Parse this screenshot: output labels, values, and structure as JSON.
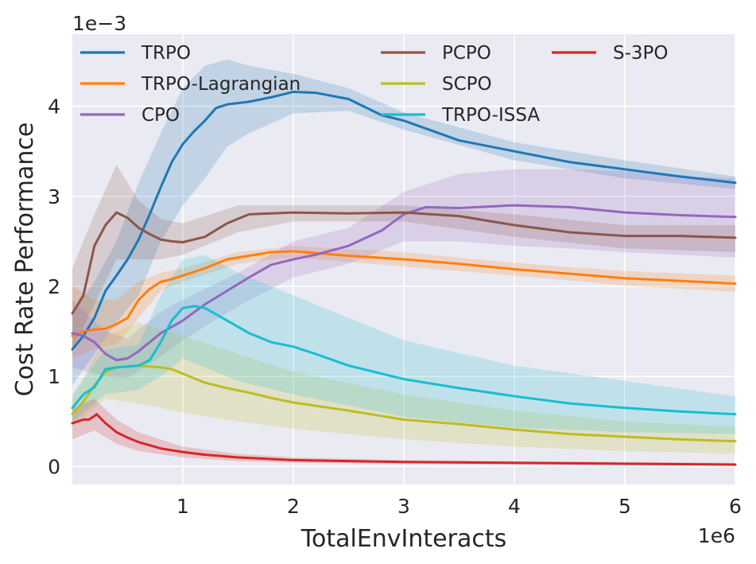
{
  "chart_data": {
    "type": "line",
    "xlabel": "TotalEnvInteracts",
    "ylabel": "Cost Rate Performance",
    "x_offset_label": "1e6",
    "y_offset_label": "1e−3",
    "x_unit_scale": 1000000,
    "y_unit_scale": 0.001,
    "xlim": [
      0.0,
      6.0
    ],
    "ylim": [
      -0.2,
      4.8
    ],
    "xticks": [
      1,
      2,
      3,
      4,
      5,
      6
    ],
    "xtick_labels": [
      "1",
      "2",
      "3",
      "4",
      "5",
      "6"
    ],
    "yticks": [
      0,
      1,
      2,
      3,
      4
    ],
    "ytick_labels": [
      "0",
      "1",
      "2",
      "3",
      "4"
    ],
    "grid": true,
    "legend_location": "top",
    "series": [
      {
        "name": "TRPO",
        "color": "#1f77b4",
        "points": [
          [
            0,
            1.3
          ],
          [
            0.1,
            1.45
          ],
          [
            0.2,
            1.65
          ],
          [
            0.3,
            1.95
          ],
          [
            0.4,
            2.12
          ],
          [
            0.5,
            2.3
          ],
          [
            0.6,
            2.52
          ],
          [
            0.7,
            2.8
          ],
          [
            0.8,
            3.1
          ],
          [
            0.9,
            3.38
          ],
          [
            1.0,
            3.58
          ],
          [
            1.1,
            3.72
          ],
          [
            1.2,
            3.84
          ],
          [
            1.3,
            3.98
          ],
          [
            1.4,
            4.02
          ],
          [
            1.6,
            4.05
          ],
          [
            1.8,
            4.1
          ],
          [
            2.0,
            4.16
          ],
          [
            2.2,
            4.15
          ],
          [
            2.5,
            4.08
          ],
          [
            2.8,
            3.9
          ],
          [
            3.0,
            3.84
          ],
          [
            3.5,
            3.62
          ],
          [
            4.0,
            3.5
          ],
          [
            4.5,
            3.38
          ],
          [
            5.0,
            3.3
          ],
          [
            5.5,
            3.22
          ],
          [
            6.0,
            3.15
          ]
        ],
        "band": [
          [
            0,
            0.9,
            1.7
          ],
          [
            0.2,
            1.25,
            2.05
          ],
          [
            0.4,
            1.6,
            2.5
          ],
          [
            0.6,
            1.9,
            3.15
          ],
          [
            0.8,
            2.5,
            3.7
          ],
          [
            1.0,
            2.9,
            4.2
          ],
          [
            1.2,
            3.2,
            4.45
          ],
          [
            1.4,
            3.55,
            4.52
          ],
          [
            1.6,
            3.7,
            4.45
          ],
          [
            2.0,
            3.92,
            4.36
          ],
          [
            2.5,
            3.95,
            4.2
          ],
          [
            3.0,
            3.74,
            3.93
          ],
          [
            4.0,
            3.4,
            3.6
          ],
          [
            5.0,
            3.2,
            3.4
          ],
          [
            6.0,
            3.08,
            3.22
          ]
        ]
      },
      {
        "name": "TRPO-Lagrangian",
        "color": "#ff7f0e",
        "points": [
          [
            0,
            1.45
          ],
          [
            0.1,
            1.5
          ],
          [
            0.2,
            1.52
          ],
          [
            0.3,
            1.53
          ],
          [
            0.4,
            1.58
          ],
          [
            0.5,
            1.65
          ],
          [
            0.6,
            1.85
          ],
          [
            0.7,
            1.97
          ],
          [
            0.8,
            2.05
          ],
          [
            0.9,
            2.08
          ],
          [
            1.0,
            2.12
          ],
          [
            1.2,
            2.2
          ],
          [
            1.4,
            2.3
          ],
          [
            1.6,
            2.34
          ],
          [
            1.8,
            2.38
          ],
          [
            2.0,
            2.39
          ],
          [
            2.2,
            2.37
          ],
          [
            2.5,
            2.34
          ],
          [
            3.0,
            2.3
          ],
          [
            3.5,
            2.25
          ],
          [
            4.0,
            2.19
          ],
          [
            4.5,
            2.14
          ],
          [
            5.0,
            2.09
          ],
          [
            5.5,
            2.06
          ],
          [
            6.0,
            2.03
          ]
        ],
        "band": [
          [
            0,
            1.2,
            2.0
          ],
          [
            0.2,
            1.3,
            1.85
          ],
          [
            0.4,
            1.35,
            1.85
          ],
          [
            0.6,
            1.65,
            2.05
          ],
          [
            0.8,
            1.95,
            2.15
          ],
          [
            1.0,
            2.05,
            2.2
          ],
          [
            1.5,
            2.25,
            2.38
          ],
          [
            2.0,
            2.32,
            2.45
          ],
          [
            3.0,
            2.22,
            2.38
          ],
          [
            4.0,
            2.12,
            2.26
          ],
          [
            5.0,
            2.01,
            2.17
          ],
          [
            6.0,
            1.94,
            2.12
          ]
        ]
      },
      {
        "name": "CPO",
        "color": "#9467bd",
        "points": [
          [
            0,
            1.48
          ],
          [
            0.1,
            1.45
          ],
          [
            0.2,
            1.38
          ],
          [
            0.3,
            1.25
          ],
          [
            0.4,
            1.18
          ],
          [
            0.5,
            1.2
          ],
          [
            0.6,
            1.28
          ],
          [
            0.7,
            1.38
          ],
          [
            0.8,
            1.48
          ],
          [
            0.9,
            1.55
          ],
          [
            1.0,
            1.62
          ],
          [
            1.2,
            1.8
          ],
          [
            1.4,
            1.95
          ],
          [
            1.6,
            2.1
          ],
          [
            1.8,
            2.24
          ],
          [
            2.0,
            2.3
          ],
          [
            2.2,
            2.35
          ],
          [
            2.5,
            2.45
          ],
          [
            2.8,
            2.62
          ],
          [
            3.0,
            2.8
          ],
          [
            3.2,
            2.88
          ],
          [
            3.5,
            2.87
          ],
          [
            4.0,
            2.9
          ],
          [
            4.5,
            2.88
          ],
          [
            5.0,
            2.82
          ],
          [
            5.5,
            2.79
          ],
          [
            6.0,
            2.77
          ]
        ],
        "band": [
          [
            0,
            1.1,
            1.85
          ],
          [
            0.3,
            1.0,
            1.5
          ],
          [
            0.5,
            0.98,
            1.42
          ],
          [
            0.8,
            1.22,
            1.72
          ],
          [
            1.0,
            1.4,
            1.85
          ],
          [
            1.5,
            1.78,
            2.15
          ],
          [
            2.0,
            2.1,
            2.5
          ],
          [
            2.5,
            2.25,
            2.65
          ],
          [
            3.0,
            2.5,
            3.05
          ],
          [
            3.5,
            2.5,
            3.25
          ],
          [
            4.0,
            2.45,
            3.3
          ],
          [
            4.5,
            2.42,
            3.3
          ],
          [
            5.0,
            2.38,
            3.28
          ],
          [
            5.5,
            2.35,
            3.22
          ],
          [
            6.0,
            2.32,
            3.2
          ]
        ]
      },
      {
        "name": "PCPO",
        "color": "#8c564b",
        "points": [
          [
            0,
            1.7
          ],
          [
            0.1,
            1.9
          ],
          [
            0.2,
            2.45
          ],
          [
            0.3,
            2.68
          ],
          [
            0.4,
            2.82
          ],
          [
            0.5,
            2.76
          ],
          [
            0.6,
            2.65
          ],
          [
            0.7,
            2.58
          ],
          [
            0.8,
            2.52
          ],
          [
            0.9,
            2.5
          ],
          [
            1.0,
            2.49
          ],
          [
            1.2,
            2.55
          ],
          [
            1.4,
            2.7
          ],
          [
            1.6,
            2.8
          ],
          [
            1.8,
            2.81
          ],
          [
            2.0,
            2.82
          ],
          [
            2.5,
            2.81
          ],
          [
            3.0,
            2.82
          ],
          [
            3.5,
            2.78
          ],
          [
            4.0,
            2.68
          ],
          [
            4.5,
            2.6
          ],
          [
            5.0,
            2.56
          ],
          [
            5.5,
            2.56
          ],
          [
            6.0,
            2.54
          ]
        ],
        "band": [
          [
            0,
            1.3,
            2.2
          ],
          [
            0.2,
            1.8,
            2.8
          ],
          [
            0.4,
            2.3,
            3.35
          ],
          [
            0.6,
            2.3,
            2.95
          ],
          [
            0.8,
            2.3,
            2.75
          ],
          [
            1.0,
            2.35,
            2.7
          ],
          [
            1.5,
            2.6,
            2.9
          ],
          [
            2.0,
            2.72,
            2.9
          ],
          [
            3.0,
            2.72,
            2.9
          ],
          [
            4.0,
            2.55,
            2.8
          ],
          [
            5.0,
            2.42,
            2.68
          ],
          [
            6.0,
            2.38,
            2.68
          ]
        ]
      },
      {
        "name": "SCPO",
        "color": "#bcbd22",
        "points": [
          [
            0,
            0.58
          ],
          [
            0.1,
            0.72
          ],
          [
            0.2,
            0.9
          ],
          [
            0.3,
            1.05
          ],
          [
            0.4,
            1.1
          ],
          [
            0.5,
            1.11
          ],
          [
            0.6,
            1.12
          ],
          [
            0.7,
            1.11
          ],
          [
            0.8,
            1.1
          ],
          [
            0.9,
            1.08
          ],
          [
            1.0,
            1.03
          ],
          [
            1.2,
            0.93
          ],
          [
            1.4,
            0.87
          ],
          [
            1.6,
            0.82
          ],
          [
            1.8,
            0.76
          ],
          [
            2.0,
            0.71
          ],
          [
            2.5,
            0.62
          ],
          [
            3.0,
            0.52
          ],
          [
            3.5,
            0.47
          ],
          [
            4.0,
            0.41
          ],
          [
            4.5,
            0.36
          ],
          [
            5.0,
            0.33
          ],
          [
            5.5,
            0.3
          ],
          [
            6.0,
            0.28
          ]
        ],
        "band": [
          [
            0,
            0.45,
            0.75
          ],
          [
            0.3,
            0.75,
            1.45
          ],
          [
            0.6,
            0.7,
            1.6
          ],
          [
            1.0,
            0.6,
            1.45
          ],
          [
            1.5,
            0.5,
            1.25
          ],
          [
            2.0,
            0.42,
            1.05
          ],
          [
            3.0,
            0.3,
            0.8
          ],
          [
            4.0,
            0.22,
            0.62
          ],
          [
            5.0,
            0.17,
            0.5
          ],
          [
            6.0,
            0.14,
            0.44
          ]
        ]
      },
      {
        "name": "TRPO-ISSA",
        "color": "#17becf",
        "points": [
          [
            0,
            0.65
          ],
          [
            0.1,
            0.8
          ],
          [
            0.2,
            0.88
          ],
          [
            0.3,
            1.08
          ],
          [
            0.4,
            1.1
          ],
          [
            0.5,
            1.11
          ],
          [
            0.6,
            1.12
          ],
          [
            0.7,
            1.18
          ],
          [
            0.8,
            1.38
          ],
          [
            0.9,
            1.62
          ],
          [
            1.0,
            1.76
          ],
          [
            1.1,
            1.78
          ],
          [
            1.2,
            1.76
          ],
          [
            1.4,
            1.62
          ],
          [
            1.6,
            1.48
          ],
          [
            1.8,
            1.38
          ],
          [
            2.0,
            1.33
          ],
          [
            2.2,
            1.25
          ],
          [
            2.5,
            1.12
          ],
          [
            3.0,
            0.97
          ],
          [
            3.5,
            0.87
          ],
          [
            4.0,
            0.78
          ],
          [
            4.5,
            0.7
          ],
          [
            5.0,
            0.65
          ],
          [
            5.5,
            0.61
          ],
          [
            6.0,
            0.58
          ]
        ],
        "band": [
          [
            0,
            0.5,
            0.8
          ],
          [
            0.3,
            0.8,
            1.3
          ],
          [
            0.6,
            0.85,
            1.35
          ],
          [
            0.8,
            1.0,
            1.9
          ],
          [
            1.0,
            1.2,
            2.3
          ],
          [
            1.2,
            1.1,
            2.35
          ],
          [
            1.5,
            0.95,
            2.15
          ],
          [
            2.0,
            0.8,
            1.9
          ],
          [
            3.0,
            0.55,
            1.4
          ],
          [
            4.0,
            0.43,
            1.12
          ],
          [
            5.0,
            0.38,
            0.95
          ],
          [
            6.0,
            0.36,
            0.78
          ]
        ]
      },
      {
        "name": "S-3PO",
        "color": "#d62728",
        "points": [
          [
            0,
            0.48
          ],
          [
            0.1,
            0.52
          ],
          [
            0.15,
            0.52
          ],
          [
            0.2,
            0.56
          ],
          [
            0.22,
            0.58
          ],
          [
            0.3,
            0.48
          ],
          [
            0.4,
            0.38
          ],
          [
            0.5,
            0.32
          ],
          [
            0.6,
            0.27
          ],
          [
            0.8,
            0.2
          ],
          [
            1.0,
            0.16
          ],
          [
            1.2,
            0.13
          ],
          [
            1.5,
            0.1
          ],
          [
            2.0,
            0.07
          ],
          [
            2.5,
            0.06
          ],
          [
            3.0,
            0.05
          ],
          [
            4.0,
            0.04
          ],
          [
            5.0,
            0.03
          ],
          [
            6.0,
            0.02
          ]
        ],
        "band": [
          [
            0,
            0.3,
            0.65
          ],
          [
            0.2,
            0.4,
            0.75
          ],
          [
            0.4,
            0.25,
            0.52
          ],
          [
            0.6,
            0.17,
            0.38
          ],
          [
            1.0,
            0.1,
            0.22
          ],
          [
            1.5,
            0.06,
            0.14
          ],
          [
            2.0,
            0.04,
            0.1
          ],
          [
            3.0,
            0.03,
            0.07
          ],
          [
            6.0,
            0.01,
            0.04
          ]
        ]
      }
    ],
    "legend_entries": [
      "TRPO",
      "TRPO-Lagrangian",
      "CPO",
      "PCPO",
      "SCPO",
      "TRPO-ISSA",
      "S-3PO"
    ]
  }
}
